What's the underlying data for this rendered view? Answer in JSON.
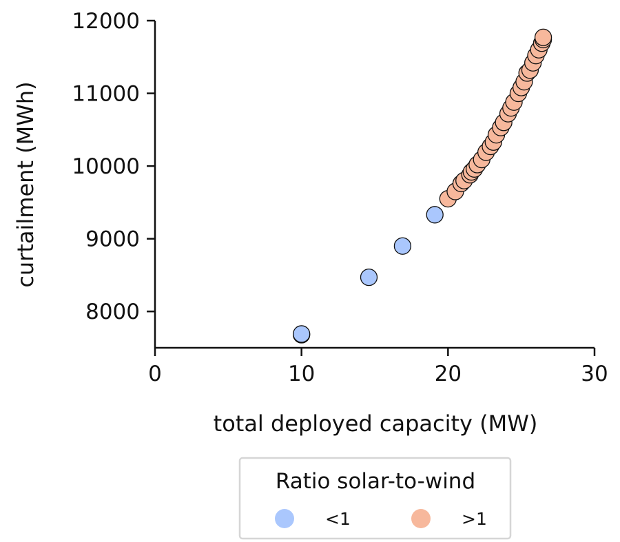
{
  "chart_data": {
    "type": "scatter",
    "xlabel": "total deployed capacity (MW)",
    "ylabel": "curtailment (MWh)",
    "xlim": [
      0,
      30
    ],
    "ylim": [
      7500,
      12000
    ],
    "xticks": [
      "0",
      "10",
      "20",
      "30"
    ],
    "yticks": [
      "8000",
      "9000",
      "10000",
      "11000",
      "12000"
    ],
    "grid": false,
    "legend": {
      "title": "Ratio solar-to-wind",
      "placement": "bottom-center, below plot",
      "entries": [
        {
          "label": "<1",
          "color": "#aac7fd"
        },
        {
          "label": ">1",
          "color": "#f7b89c"
        }
      ]
    },
    "series": [
      {
        "name": "<1",
        "color": "#aac7fd",
        "points": [
          [
            10.0,
            7680
          ],
          [
            10.0,
            7690
          ],
          [
            14.6,
            8470
          ],
          [
            16.9,
            8900
          ],
          [
            19.1,
            9330
          ]
        ]
      },
      {
        "name": ">1",
        "color": "#f7b89c",
        "points": [
          [
            20.0,
            9550
          ],
          [
            20.5,
            9650
          ],
          [
            20.9,
            9760
          ],
          [
            21.1,
            9800
          ],
          [
            21.5,
            9880
          ],
          [
            21.6,
            9920
          ],
          [
            21.8,
            9960
          ],
          [
            22.0,
            10020
          ],
          [
            22.3,
            10090
          ],
          [
            22.6,
            10190
          ],
          [
            22.9,
            10270
          ],
          [
            23.1,
            10330
          ],
          [
            23.3,
            10430
          ],
          [
            23.6,
            10530
          ],
          [
            23.8,
            10600
          ],
          [
            24.1,
            10720
          ],
          [
            24.3,
            10800
          ],
          [
            24.5,
            10880
          ],
          [
            24.8,
            11000
          ],
          [
            25.0,
            11080
          ],
          [
            25.2,
            11160
          ],
          [
            25.4,
            11280
          ],
          [
            25.6,
            11320
          ],
          [
            25.8,
            11420
          ],
          [
            26.0,
            11520
          ],
          [
            26.2,
            11600
          ],
          [
            26.4,
            11690
          ],
          [
            26.5,
            11740
          ],
          [
            26.5,
            11770
          ]
        ]
      }
    ]
  }
}
